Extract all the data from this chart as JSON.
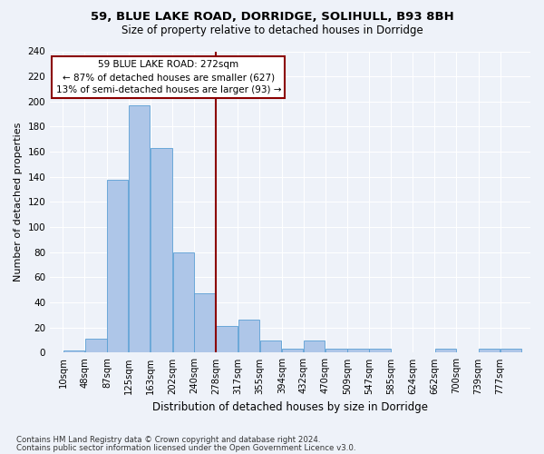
{
  "title1": "59, BLUE LAKE ROAD, DORRIDGE, SOLIHULL, B93 8BH",
  "title2": "Size of property relative to detached houses in Dorridge",
  "xlabel": "Distribution of detached houses by size in Dorridge",
  "ylabel": "Number of detached properties",
  "bin_labels": [
    "10sqm",
    "48sqm",
    "87sqm",
    "125sqm",
    "163sqm",
    "202sqm",
    "240sqm",
    "278sqm",
    "317sqm",
    "355sqm",
    "394sqm",
    "432sqm",
    "470sqm",
    "509sqm",
    "547sqm",
    "585sqm",
    "624sqm",
    "662sqm",
    "700sqm",
    "739sqm",
    "777sqm"
  ],
  "bar_values": [
    2,
    11,
    138,
    197,
    163,
    80,
    47,
    21,
    26,
    10,
    3,
    10,
    3,
    3,
    3,
    0,
    0,
    3,
    0,
    3,
    3
  ],
  "bar_color": "#aec6e8",
  "bar_edgecolor": "#5a9fd4",
  "vline_color": "#8b0000",
  "annotation_text": "59 BLUE LAKE ROAD: 272sqm\n← 87% of detached houses are smaller (627)\n13% of semi-detached houses are larger (93) →",
  "annotation_box_color": "#ffffff",
  "annotation_border_color": "#8b0000",
  "footnote1": "Contains HM Land Registry data © Crown copyright and database right 2024.",
  "footnote2": "Contains public sector information licensed under the Open Government Licence v3.0.",
  "background_color": "#eef2f9",
  "grid_color": "#ffffff",
  "ylim": [
    0,
    240
  ],
  "yticks": [
    0,
    20,
    40,
    60,
    80,
    100,
    120,
    140,
    160,
    180,
    200,
    220,
    240
  ],
  "bin_values": [
    10,
    48,
    87,
    125,
    163,
    202,
    240,
    278,
    317,
    355,
    394,
    432,
    470,
    509,
    547,
    585,
    624,
    662,
    700,
    739,
    777
  ]
}
